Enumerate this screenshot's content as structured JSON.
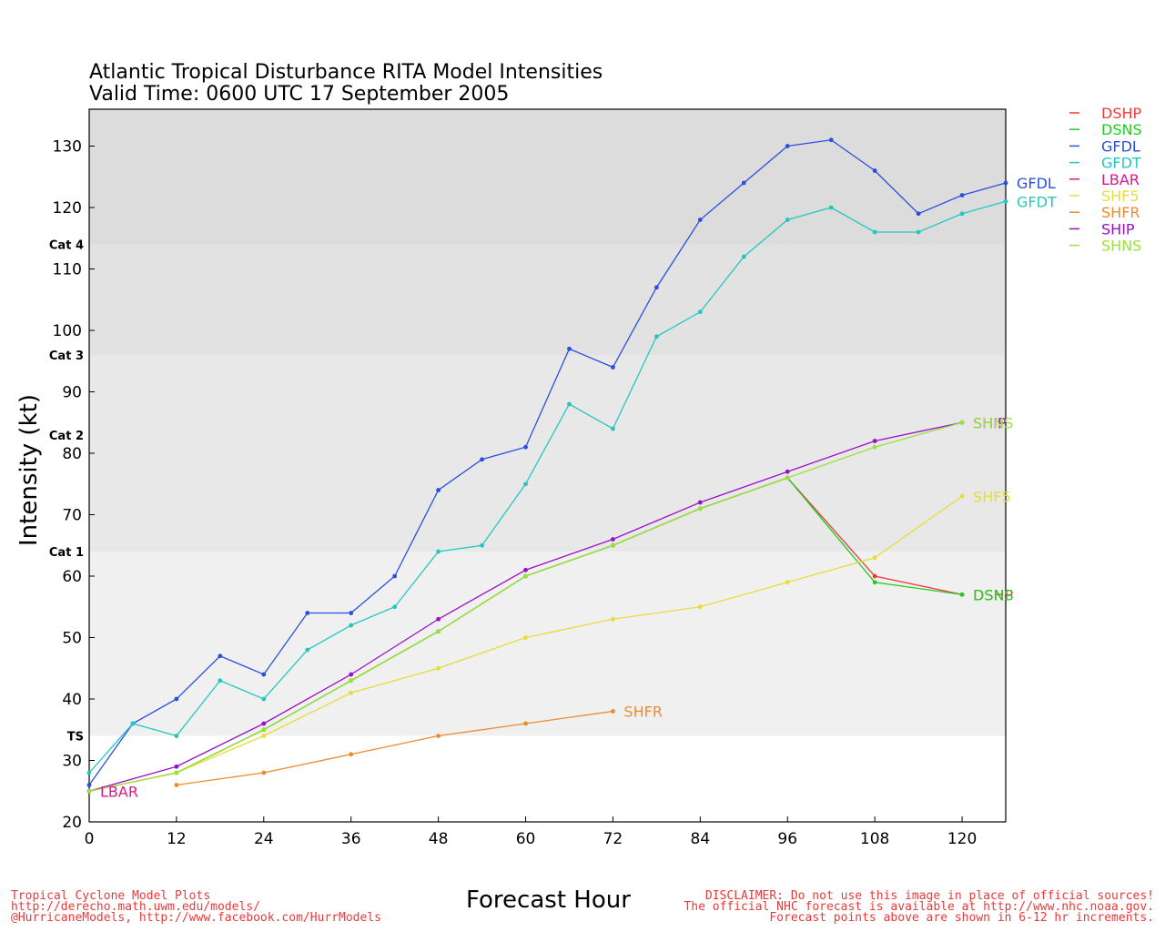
{
  "chart_data": {
    "type": "line",
    "title": "Atlantic Tropical Disturbance RITA Model Intensities",
    "subtitle": "Valid Time: 0600 UTC 17 September 2005",
    "xlabel": "Forecast Hour",
    "ylabel": "Intensity (kt)",
    "xlim": [
      0,
      126
    ],
    "ylim": [
      20,
      136
    ],
    "x_ticks": [
      0,
      12,
      24,
      36,
      48,
      60,
      72,
      84,
      96,
      108,
      120
    ],
    "y_ticks": [
      20,
      30,
      40,
      50,
      60,
      70,
      80,
      90,
      100,
      110,
      120,
      130
    ],
    "grid": false,
    "legend_position": "outside-right",
    "categories_bands": [
      {
        "label": "TS",
        "from": 34,
        "to": 64,
        "color": "#f0f0f0"
      },
      {
        "label": "Cat 1",
        "from": 64,
        "to": 83,
        "color": "#e8e8e8"
      },
      {
        "label": "Cat 2",
        "from": 83,
        "to": 96,
        "color": "#e8e8e8"
      },
      {
        "label": "Cat 3",
        "from": 96,
        "to": 114,
        "color": "#e2e2e2"
      },
      {
        "label": "Cat 4",
        "from": 114,
        "to": 136,
        "color": "#dcdcdc"
      }
    ],
    "series": [
      {
        "name": "DSHP",
        "color": "#ee3b3b",
        "end_label": "DSHP",
        "x": [
          0,
          12,
          24,
          36,
          48,
          60,
          72,
          84,
          96,
          108,
          120
        ],
        "y": [
          25,
          28,
          35,
          43,
          51,
          60,
          65,
          71,
          76,
          60,
          57
        ]
      },
      {
        "name": "DSNS",
        "color": "#22cc22",
        "end_label": "DSNS",
        "x": [
          0,
          12,
          24,
          36,
          48,
          60,
          72,
          84,
          96,
          108,
          120
        ],
        "y": [
          25,
          28,
          35,
          43,
          51,
          60,
          65,
          71,
          76,
          59,
          57
        ]
      },
      {
        "name": "GFDL",
        "color": "#2a4fe0",
        "end_label": "GFDL",
        "x": [
          0,
          6,
          12,
          18,
          24,
          30,
          36,
          42,
          48,
          54,
          60,
          66,
          72,
          78,
          84,
          90,
          96,
          102,
          108,
          114,
          120,
          126
        ],
        "y": [
          26,
          36,
          40,
          47,
          44,
          54,
          54,
          60,
          74,
          79,
          81,
          97,
          94,
          107,
          118,
          124,
          130,
          131,
          126,
          119,
          122,
          124
        ]
      },
      {
        "name": "GFDT",
        "color": "#22c8c0",
        "end_label": "GFDT",
        "x": [
          0,
          6,
          12,
          18,
          24,
          30,
          36,
          42,
          48,
          54,
          60,
          66,
          72,
          78,
          84,
          90,
          96,
          102,
          108,
          114,
          120,
          126
        ],
        "y": [
          28,
          36,
          34,
          43,
          40,
          48,
          52,
          55,
          64,
          65,
          75,
          88,
          84,
          99,
          103,
          112,
          118,
          120,
          116,
          116,
          119,
          121
        ]
      },
      {
        "name": "LBAR",
        "color": "#e0148c",
        "end_label": "LBAR",
        "x": [
          0
        ],
        "y": [
          25
        ]
      },
      {
        "name": "SHF5",
        "color": "#e8dc3a",
        "end_label": "SHF5",
        "x": [
          0,
          12,
          24,
          36,
          48,
          60,
          72,
          84,
          96,
          108,
          120
        ],
        "y": [
          25,
          28,
          34,
          41,
          45,
          50,
          53,
          55,
          59,
          63,
          73
        ]
      },
      {
        "name": "SHFR",
        "color": "#ee8a2e",
        "end_label": "SHFR",
        "x": [
          12,
          24,
          36,
          48,
          60,
          72
        ],
        "y": [
          26,
          28,
          31,
          34,
          36,
          38
        ]
      },
      {
        "name": "SHIP",
        "color": "#9a10c8",
        "end_label": "SHIP",
        "x": [
          0,
          12,
          24,
          36,
          48,
          60,
          72,
          84,
          96,
          108,
          120
        ],
        "y": [
          25,
          29,
          36,
          44,
          53,
          61,
          66,
          72,
          77,
          82,
          85
        ]
      },
      {
        "name": "SHNS",
        "color": "#9ae23a",
        "end_label": "SHNS",
        "x": [
          0,
          12,
          24,
          36,
          48,
          60,
          72,
          84,
          96,
          108,
          120
        ],
        "y": [
          25,
          28,
          35,
          43,
          51,
          60,
          65,
          71,
          76,
          81,
          85
        ]
      }
    ]
  },
  "footer": {
    "left_lines": [
      "Tropical Cyclone Model Plots",
      "http://derecho.math.uwm.edu/models/",
      "@HurricaneModels, http://www.facebook.com/HurrModels"
    ],
    "right_lines": [
      "DISCLAIMER: Do not use this image in place of official sources!",
      "The official NHC forecast is available at http://www.nhc.noaa.gov.",
      "Forecast points above are shown in 6-12 hr increments."
    ]
  }
}
